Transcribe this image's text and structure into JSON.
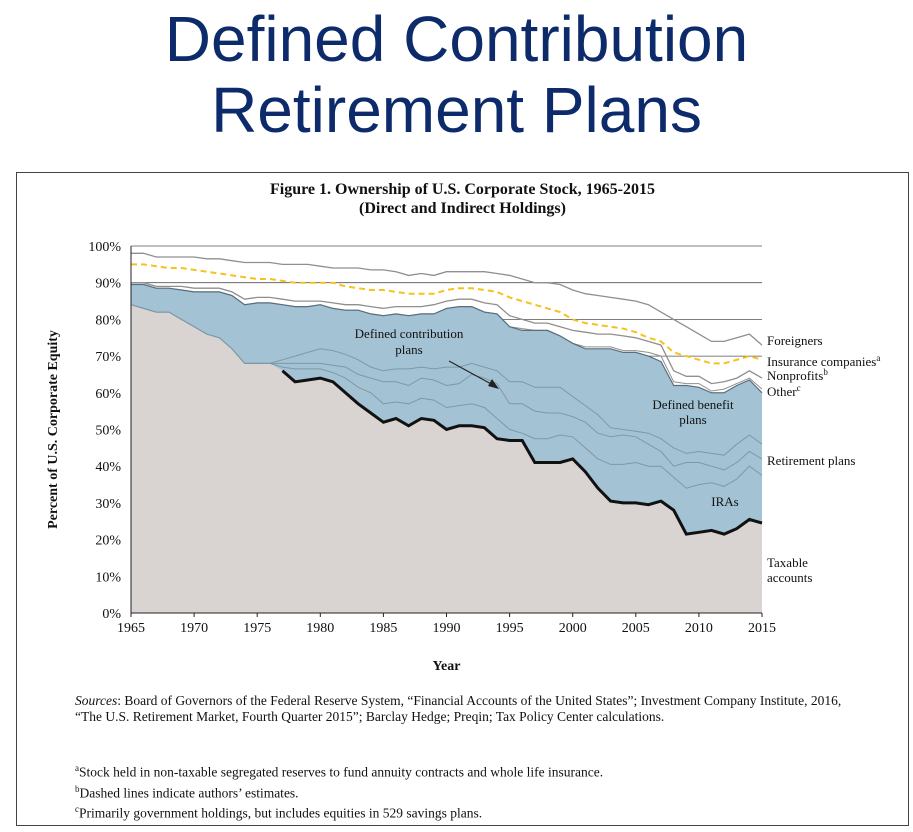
{
  "slide": {
    "title_line1": "Defined Contribution",
    "title_line2": "Retirement Plans"
  },
  "figure": {
    "title_line1": "Figure 1. Ownership of U.S. Corporate Stock, 1965-2015",
    "title_line2": "(Direct and Indirect Holdings)",
    "sources_label": "Sources",
    "sources_text": ": Board of Governors of the Federal Reserve System, “Financial Accounts of the United States”; Investment Company Institute, 2016, “The U.S. Retirement Market, Fourth Quarter 2015”; Barclay Hedge; Preqin; Tax Policy Center calculations.",
    "notes": [
      {
        "mark": "a",
        "text": "Stock held in non-taxable segregated reserves to fund annuity contracts and whole life insurance."
      },
      {
        "mark": "b",
        "text": "Dashed lines indicate authors’ estimates."
      },
      {
        "mark": "c",
        "text": "Primarily government holdings, but includes equities in 529 savings plans."
      }
    ]
  },
  "colors": {
    "taxable": "#d9d3d1",
    "retirement": "#a3c3d4",
    "ira_line": "#111111",
    "insurance_line": "#f6c21b",
    "boundary": "#8f8f8f",
    "gridline": "#555555"
  },
  "chart_data": {
    "type": "area",
    "title": "Figure 1. Ownership of U.S. Corporate Stock, 1965-2015",
    "subtitle": "(Direct and Indirect Holdings)",
    "xlabel": "Year",
    "ylabel": "Percent of U.S. Corporate Equity",
    "xlim": [
      1965,
      2015
    ],
    "ylim": [
      0,
      100
    ],
    "x_ticks": [
      "1965",
      "1970",
      "1975",
      "1980",
      "1985",
      "1990",
      "1995",
      "2000",
      "2005",
      "2010",
      "2015"
    ],
    "y_ticks": [
      "0%",
      "10%",
      "20%",
      "30%",
      "40%",
      "50%",
      "60%",
      "70%",
      "80%",
      "90%",
      "100%"
    ],
    "grid": "horizontal",
    "x": [
      1965,
      1966,
      1967,
      1968,
      1969,
      1970,
      1971,
      1972,
      1973,
      1974,
      1975,
      1976,
      1977,
      1978,
      1979,
      1980,
      1981,
      1982,
      1983,
      1984,
      1985,
      1986,
      1987,
      1988,
      1989,
      1990,
      1991,
      1992,
      1993,
      1994,
      1995,
      1996,
      1997,
      1998,
      1999,
      2000,
      2001,
      2002,
      2003,
      2004,
      2005,
      2006,
      2007,
      2008,
      2009,
      2010,
      2011,
      2012,
      2013,
      2014,
      2015
    ],
    "series": [
      {
        "name": "Taxable accounts",
        "values": [
          84,
          83,
          82,
          82,
          80,
          78,
          76,
          75,
          72,
          68,
          68,
          68,
          66,
          63,
          63.5,
          64,
          63,
          60,
          57,
          54.5,
          52,
          53,
          51,
          53,
          52.5,
          50,
          51,
          51,
          50.5,
          47.5,
          47,
          47,
          41,
          41,
          41,
          42,
          38.5,
          34,
          30.5,
          30,
          30,
          29.5,
          30.5,
          28,
          21.5,
          22,
          22.5,
          21.5,
          23,
          25.5,
          24.5
        ]
      },
      {
        "name": "IRAs",
        "values": [
          84,
          83,
          82,
          82,
          80,
          78,
          76,
          75,
          72,
          68,
          68,
          68,
          67,
          66.5,
          66.5,
          66.5,
          65.5,
          64,
          61.5,
          60,
          57,
          57.5,
          57,
          58.5,
          58,
          56,
          56.5,
          57,
          56,
          53,
          50,
          49,
          47.5,
          47.5,
          48.5,
          48,
          45,
          42,
          40.5,
          40.5,
          41,
          40,
          40,
          37,
          34,
          35,
          35.5,
          34.5,
          36.5,
          40,
          37.5
        ]
      },
      {
        "name": "Defined contribution plans",
        "values": [
          84,
          83,
          82,
          82,
          80,
          78,
          76,
          75,
          72,
          68,
          68,
          68,
          68,
          68,
          68,
          68,
          67.5,
          67,
          65,
          64,
          63,
          63,
          62,
          64,
          63.5,
          62,
          62.5,
          65,
          64,
          62.5,
          57,
          57,
          55,
          54.5,
          54.5,
          53.5,
          52,
          49,
          48,
          48.5,
          48,
          46,
          44,
          40,
          41,
          41,
          40,
          39,
          41,
          44,
          42
        ]
      },
      {
        "name": "Retirement plans",
        "values": [
          84,
          83,
          82,
          82,
          80,
          78,
          76,
          75,
          72,
          68,
          68,
          68,
          69,
          70,
          71,
          72,
          71.5,
          70.5,
          69,
          67,
          66,
          66.5,
          66.5,
          67,
          66.5,
          67,
          67,
          68,
          67,
          66,
          63,
          63,
          61.5,
          61.5,
          61.5,
          59,
          56.5,
          54,
          50.5,
          50,
          49.5,
          49,
          47.5,
          45,
          43.5,
          44,
          43.5,
          43,
          46,
          48.5,
          46
        ]
      },
      {
        "name": "Defined benefit plans",
        "values": [
          89.5,
          89.5,
          88.5,
          88.5,
          88,
          87.5,
          87.5,
          87.5,
          86.5,
          84,
          84.5,
          84.5,
          84,
          83.5,
          83.5,
          84,
          83,
          82.5,
          82.5,
          81.5,
          81,
          81.5,
          81,
          81.5,
          81.5,
          83,
          83.5,
          83.5,
          82,
          81.5,
          78,
          77,
          77,
          77,
          75.5,
          73.5,
          72,
          72,
          72,
          71,
          71,
          70,
          68.5,
          62,
          62,
          61.5,
          60,
          60,
          62,
          63.5,
          60
        ]
      },
      {
        "name": "Other",
        "values": [
          89.5,
          89.5,
          88.5,
          88.5,
          88,
          87.5,
          87.5,
          87.5,
          86.5,
          84,
          84.5,
          84.5,
          84,
          83.5,
          83.5,
          84,
          83,
          82.5,
          82.5,
          81.5,
          81,
          81.5,
          81,
          81.5,
          81.5,
          83,
          83.5,
          83.5,
          82,
          81.5,
          78,
          77.5,
          77,
          77,
          75.5,
          73.5,
          72.5,
          72.5,
          72.5,
          71.5,
          71.5,
          71,
          70,
          63,
          62.5,
          62.5,
          60.5,
          61,
          62.5,
          64,
          61
        ]
      },
      {
        "name": "Nonprofits",
        "values": [
          90,
          90,
          89,
          89,
          89,
          88.5,
          88.5,
          88.5,
          87.5,
          85.5,
          86,
          86,
          85.5,
          85,
          85,
          85,
          84.5,
          84,
          84,
          83.5,
          83,
          83.5,
          83.5,
          83.5,
          84,
          85,
          85.5,
          85.5,
          84.5,
          84,
          81,
          80,
          79,
          79,
          78,
          77,
          76.5,
          76,
          76,
          75.5,
          75,
          74,
          73,
          66,
          64.5,
          64.5,
          62.5,
          63,
          64,
          66,
          64
        ]
      },
      {
        "name": "Insurance companies",
        "values": [
          95,
          95,
          94.5,
          94,
          94,
          93.5,
          93,
          92.5,
          92,
          91.5,
          91,
          91,
          90.5,
          90,
          90,
          90,
          90,
          89,
          88.5,
          88,
          88,
          87.5,
          87,
          87,
          87,
          88,
          88.5,
          88.5,
          88,
          87.5,
          86,
          85,
          84,
          83,
          82,
          80,
          79,
          78.5,
          78,
          77.5,
          76.5,
          75,
          74,
          71,
          70,
          69,
          68,
          68,
          69,
          70,
          69
        ]
      },
      {
        "name": "Foreigners",
        "values": [
          98,
          98,
          97,
          97,
          97,
          97,
          96.5,
          96.5,
          96,
          95.5,
          95.5,
          95.5,
          95,
          95,
          95,
          94.5,
          94,
          94,
          94,
          93.5,
          93.5,
          93,
          92,
          92.5,
          92,
          93,
          93,
          93,
          93,
          92.5,
          92,
          91,
          90,
          90,
          89.5,
          88,
          87,
          86.5,
          86,
          85.5,
          85,
          84,
          82,
          80,
          78,
          76,
          74,
          74,
          75,
          76,
          73
        ]
      }
    ],
    "series_labels": [
      "Foreigners",
      "Insurance companies",
      "Nonprofits",
      "Other",
      "Defined benefit plans",
      "Retirement plans",
      "IRAs",
      "Taxable accounts"
    ],
    "label_superscripts": {
      "Insurance companies": "a",
      "Nonprofits": "b",
      "Other": "c"
    },
    "annotation": "Defined contribution plans",
    "inner_labels": {
      "defined_benefit_line1": "Defined benefit",
      "defined_benefit_line2": "plans",
      "dc_line1": "Defined contribution",
      "dc_line2": "plans",
      "iras": "IRAs"
    },
    "right_labels": {
      "taxable_line1": "Taxable",
      "taxable_line2": "accounts"
    }
  }
}
